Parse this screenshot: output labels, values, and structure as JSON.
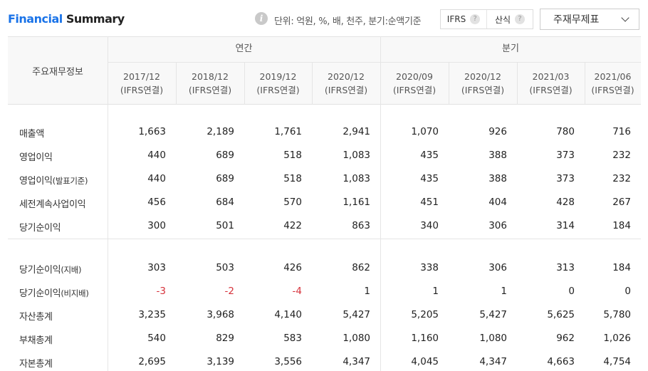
{
  "header": {
    "title_part1": "Financial",
    "title_part2": "Summary",
    "info_icon": "i",
    "unit_text": "단위: 억원, %, 배, 천주, 분기:순액기준",
    "toggles": [
      {
        "label": "IFRS",
        "help": "?"
      },
      {
        "label": "산식",
        "help": "?"
      }
    ],
    "select_value": "주재무제표"
  },
  "table": {
    "corner_label": "주요재무정보",
    "groups": [
      "연간",
      "분기"
    ],
    "columns": [
      {
        "period": "2017/12",
        "basis": "(IFRS연결)"
      },
      {
        "period": "2018/12",
        "basis": "(IFRS연결)"
      },
      {
        "period": "2019/12",
        "basis": "(IFRS연결)"
      },
      {
        "period": "2020/12",
        "basis": "(IFRS연결)"
      },
      {
        "period": "2020/09",
        "basis": "(IFRS연결)"
      },
      {
        "period": "2020/12",
        "basis": "(IFRS연결)"
      },
      {
        "period": "2021/03",
        "basis": "(IFRS연결)"
      },
      {
        "period": "2021/06",
        "basis": "(IFRS연결)"
      }
    ],
    "rows": [
      {
        "label": "매출액",
        "sub": "",
        "values": [
          "1,663",
          "2,189",
          "1,761",
          "2,941",
          "1,070",
          "926",
          "780",
          "716"
        ]
      },
      {
        "label": "영업이익",
        "sub": "",
        "values": [
          "440",
          "689",
          "518",
          "1,083",
          "435",
          "388",
          "373",
          "232"
        ]
      },
      {
        "label": "영업이익",
        "sub": "(발표기준)",
        "values": [
          "440",
          "689",
          "518",
          "1,083",
          "435",
          "388",
          "373",
          "232"
        ]
      },
      {
        "label": "세전계속사업이익",
        "sub": "",
        "values": [
          "456",
          "684",
          "570",
          "1,161",
          "451",
          "404",
          "428",
          "267"
        ]
      },
      {
        "label": "당기순이익",
        "sub": "",
        "values": [
          "300",
          "501",
          "422",
          "863",
          "340",
          "306",
          "314",
          "184"
        ]
      },
      {
        "label": "당기순이익",
        "sub": "(지배)",
        "values": [
          "303",
          "503",
          "426",
          "862",
          "338",
          "306",
          "313",
          "184"
        ]
      },
      {
        "label": "당기순이익",
        "sub": "(비지배)",
        "values": [
          "-3",
          "-2",
          "-4",
          "1",
          "1",
          "1",
          "0",
          "0"
        ]
      },
      {
        "label": "자산총계",
        "sub": "",
        "values": [
          "3,235",
          "3,968",
          "4,140",
          "5,427",
          "5,205",
          "5,427",
          "5,625",
          "5,780"
        ]
      },
      {
        "label": "부채총계",
        "sub": "",
        "values": [
          "540",
          "829",
          "583",
          "1,080",
          "1,160",
          "1,080",
          "962",
          "1,026"
        ]
      },
      {
        "label": "자본총계",
        "sub": "",
        "values": [
          "2,695",
          "3,139",
          "3,556",
          "4,347",
          "4,045",
          "4,347",
          "4,663",
          "4,754"
        ]
      }
    ],
    "negative_color": "#d6323b"
  }
}
